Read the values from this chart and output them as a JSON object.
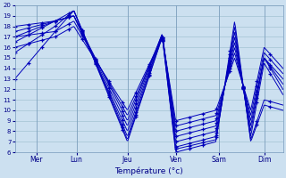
{
  "title": "Température (°c)",
  "background_color": "#cce0f0",
  "grid_color": "#99bbcc",
  "line_color": "#0000bb",
  "marker_color": "#0000bb",
  "ylim": [
    6,
    20
  ],
  "yticks": [
    6,
    7,
    8,
    9,
    10,
    11,
    12,
    13,
    14,
    15,
    16,
    17,
    18,
    19,
    20
  ],
  "x_labels": [
    "Mer",
    "Lun",
    "Jeu",
    "Ven",
    "Sam",
    "Dim"
  ],
  "x_tick_pos": [
    0.08,
    0.23,
    0.42,
    0.6,
    0.76,
    0.93
  ],
  "lines": [
    {
      "keyX": [
        0,
        0.15,
        0.22,
        0.42,
        0.55,
        0.6,
        0.75,
        0.82,
        0.88,
        0.93,
        1.0
      ],
      "keyY": [
        13.0,
        17.5,
        19.5,
        7.0,
        17.0,
        6.0,
        7.0,
        18.5,
        7.0,
        10.5,
        10.0
      ]
    },
    {
      "keyX": [
        0,
        0.15,
        0.22,
        0.42,
        0.55,
        0.6,
        0.75,
        0.82,
        0.88,
        0.93,
        1.0
      ],
      "keyY": [
        15.5,
        18.0,
        19.5,
        7.2,
        17.0,
        6.3,
        7.2,
        18.0,
        7.2,
        11.0,
        10.5
      ]
    },
    {
      "keyX": [
        0,
        0.15,
        0.22,
        0.42,
        0.55,
        0.6,
        0.75,
        0.82,
        0.88,
        0.93,
        1.0
      ],
      "keyY": [
        16.5,
        18.5,
        19.5,
        7.5,
        17.2,
        6.5,
        7.5,
        17.5,
        7.5,
        14.5,
        11.5
      ]
    },
    {
      "keyX": [
        0,
        0.15,
        0.22,
        0.42,
        0.55,
        0.6,
        0.75,
        0.82,
        0.88,
        0.93,
        1.0
      ],
      "keyY": [
        17.0,
        18.5,
        19.0,
        8.0,
        17.2,
        7.0,
        8.0,
        17.0,
        8.0,
        15.0,
        12.0
      ]
    },
    {
      "keyX": [
        0,
        0.15,
        0.22,
        0.42,
        0.55,
        0.6,
        0.75,
        0.82,
        0.88,
        0.93,
        1.0
      ],
      "keyY": [
        17.5,
        18.5,
        19.0,
        8.5,
        17.3,
        7.5,
        8.5,
        16.5,
        8.5,
        15.0,
        12.5
      ]
    },
    {
      "keyX": [
        0,
        0.15,
        0.22,
        0.42,
        0.55,
        0.6,
        0.75,
        0.82,
        0.88,
        0.93,
        1.0
      ],
      "keyY": [
        18.0,
        18.5,
        19.0,
        9.0,
        17.3,
        8.0,
        9.0,
        16.0,
        9.0,
        15.0,
        13.0
      ]
    },
    {
      "keyX": [
        0,
        0.15,
        0.22,
        0.42,
        0.55,
        0.6,
        0.75,
        0.82,
        0.88,
        0.93,
        1.0
      ],
      "keyY": [
        17.0,
        17.5,
        18.5,
        9.5,
        17.0,
        8.5,
        9.5,
        15.5,
        9.5,
        15.5,
        13.5
      ]
    },
    {
      "keyX": [
        0,
        0.15,
        0.22,
        0.42,
        0.55,
        0.6,
        0.75,
        0.82,
        0.88,
        0.93,
        1.0
      ],
      "keyY": [
        16.0,
        17.0,
        18.0,
        10.0,
        17.0,
        9.0,
        10.0,
        15.0,
        10.0,
        16.0,
        14.0
      ]
    }
  ]
}
